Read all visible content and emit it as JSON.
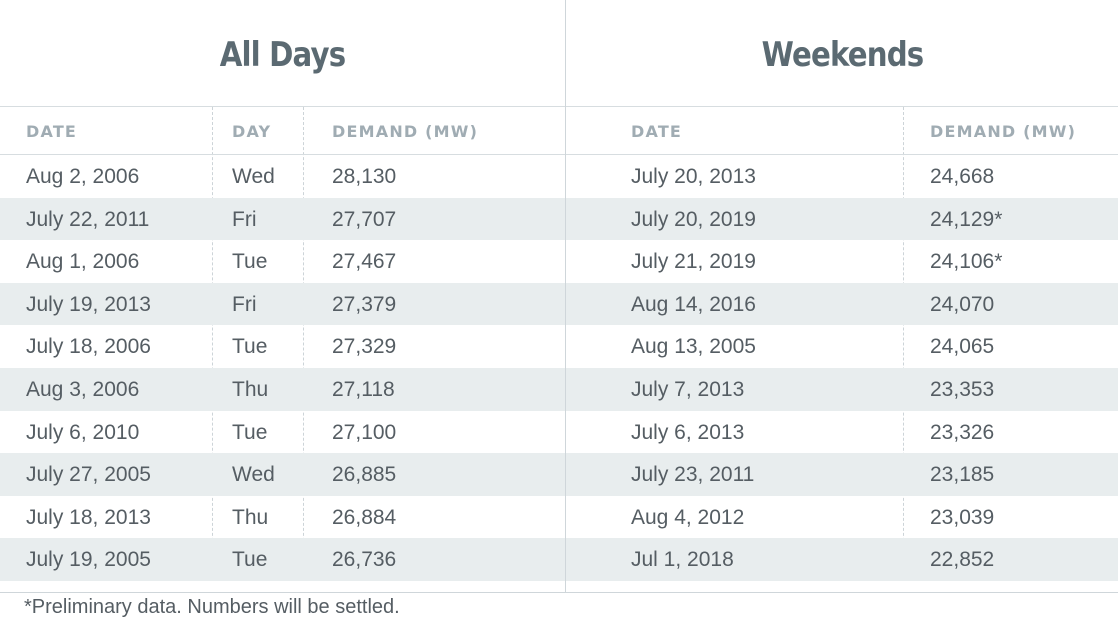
{
  "all_days": {
    "title": "All Days",
    "headers": [
      "DATE",
      "DAY",
      "DEMAND (MW)"
    ],
    "rows": [
      {
        "date": "Aug 2, 2006",
        "day": "Wed",
        "demand": "28,130"
      },
      {
        "date": "July 22, 2011",
        "day": "Fri",
        "demand": "27,707"
      },
      {
        "date": "Aug 1, 2006",
        "day": "Tue",
        "demand": "27,467"
      },
      {
        "date": "July 19, 2013",
        "day": "Fri",
        "demand": "27,379"
      },
      {
        "date": "July 18, 2006",
        "day": "Tue",
        "demand": "27,329"
      },
      {
        "date": "Aug 3, 2006",
        "day": "Thu",
        "demand": "27,118"
      },
      {
        "date": "July 6, 2010",
        "day": "Tue",
        "demand": "27,100"
      },
      {
        "date": "July 27, 2005",
        "day": "Wed",
        "demand": "26,885"
      },
      {
        "date": "July 18, 2013",
        "day": "Thu",
        "demand": "26,884"
      },
      {
        "date": "July 19, 2005",
        "day": "Tue",
        "demand": "26,736"
      }
    ]
  },
  "weekends": {
    "title": "Weekends",
    "headers": [
      "DATE",
      "DEMAND (MW)"
    ],
    "rows": [
      {
        "date": "July 20, 2013",
        "demand": "24,668"
      },
      {
        "date": "July 20, 2019",
        "demand": "24,129*"
      },
      {
        "date": "July 21, 2019",
        "demand": "24,106*"
      },
      {
        "date": "Aug 14, 2016",
        "demand": "24,070"
      },
      {
        "date": "Aug 13, 2005",
        "demand": "24,065"
      },
      {
        "date": "July 7, 2013",
        "demand": "23,353"
      },
      {
        "date": "July 6, 2013",
        "demand": "23,326"
      },
      {
        "date": "July 23, 2011",
        "demand": "23,185"
      },
      {
        "date": "Aug 4, 2012",
        "demand": "23,039"
      },
      {
        "date": "Jul 1, 2018",
        "demand": "22,852"
      }
    ]
  },
  "footnote": "*Preliminary data. Numbers will be settled.",
  "colors": {
    "text": "#555d63",
    "title": "#5b6a72",
    "header": "#a0acb3",
    "stripe": "#e8edee",
    "rule": "#d7dde0"
  }
}
